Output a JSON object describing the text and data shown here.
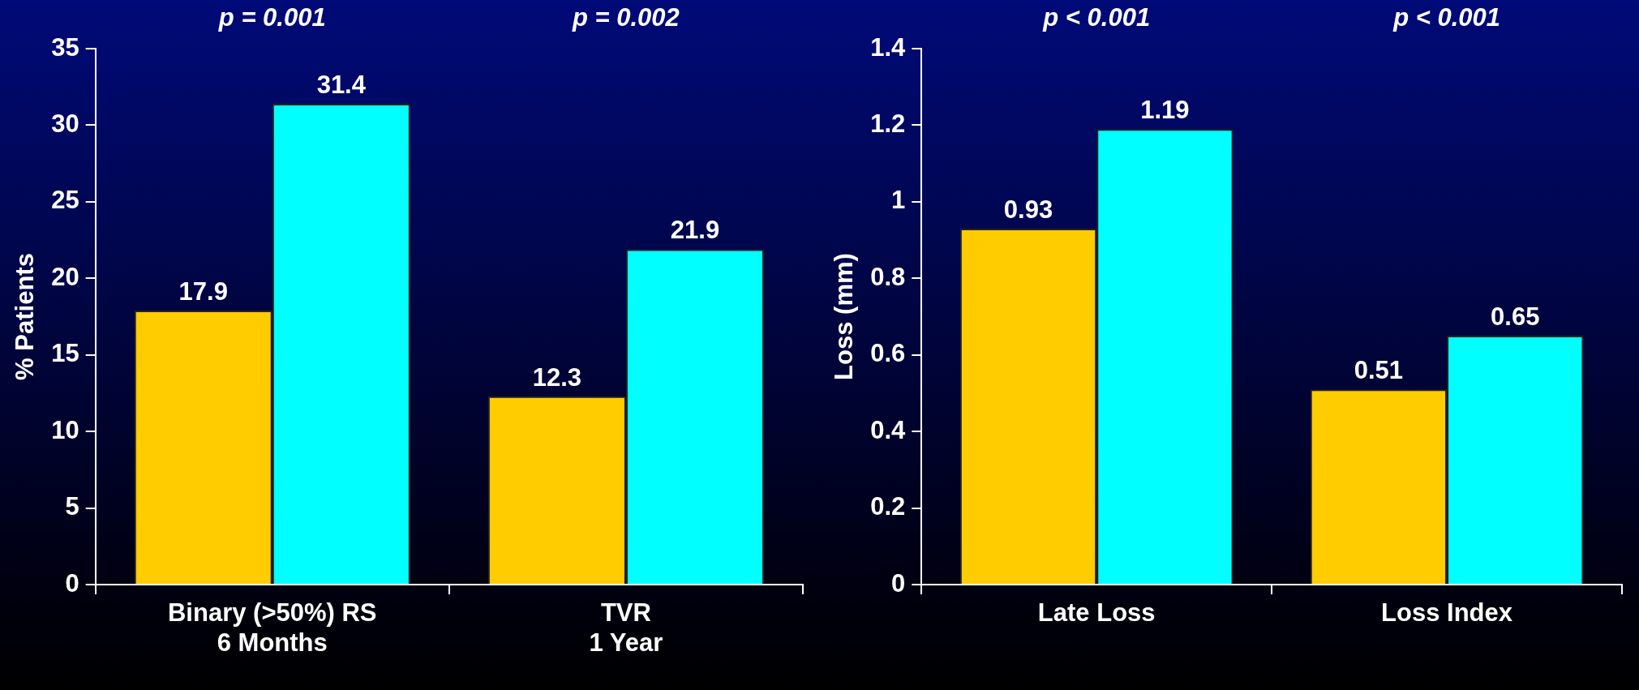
{
  "chart_data": [
    {
      "type": "bar",
      "ylabel": "% Patients",
      "categories": [
        "Binary (>50%) RS\n6 Months",
        "TVR\n1 Year"
      ],
      "series": [
        {
          "color": "#ffcc00",
          "values": [
            17.9,
            12.3
          ]
        },
        {
          "color": "#00ffff",
          "values": [
            31.4,
            21.9
          ]
        }
      ],
      "ylim": [
        0,
        35
      ],
      "yticks": [
        0,
        5,
        10,
        15,
        20,
        25,
        30,
        35
      ],
      "data_labels": true,
      "annotations": [
        "p = 0.001",
        "p = 0.002"
      ]
    },
    {
      "type": "bar",
      "ylabel": "Loss (mm)",
      "categories": [
        "Late Loss",
        "Loss Index"
      ],
      "series": [
        {
          "color": "#ffcc00",
          "values": [
            0.93,
            0.51
          ]
        },
        {
          "color": "#00ffff",
          "values": [
            1.19,
            0.65
          ]
        }
      ],
      "ylim": [
        0,
        1.4
      ],
      "yticks": [
        0,
        0.2,
        0.4,
        0.6,
        0.8,
        1,
        1.2,
        1.4
      ],
      "data_labels": true,
      "annotations": [
        "p < 0.001",
        "p < 0.001"
      ]
    }
  ]
}
